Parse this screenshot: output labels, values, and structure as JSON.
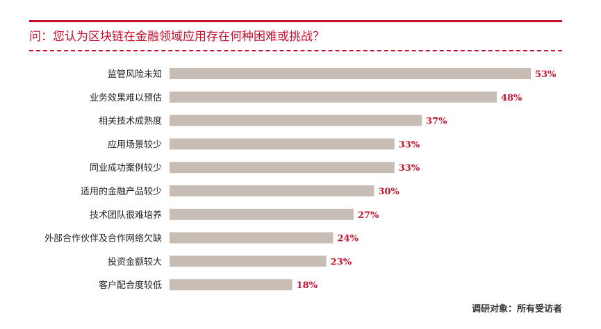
{
  "colors": {
    "accent": "#c8102e",
    "bar": "#c7bdb5",
    "text": "#222222"
  },
  "chart_data": {
    "type": "bar",
    "orientation": "horizontal",
    "title": "问：您认为区块链在金融领域应用存在何种困难或挑战？",
    "categories": [
      "监管风险未知",
      "业务效果难以预估",
      "相关技术成熟度",
      "应用场景较少",
      "同业成功案例较少",
      "适用的金融产品较少",
      "技术团队很难培养",
      "外部合作伙伴及合作网络欠缺",
      "投资金额较大",
      "客户配合度较低"
    ],
    "values": [
      53,
      48,
      37,
      33,
      33,
      30,
      27,
      24,
      23,
      18
    ],
    "value_labels": [
      "53%",
      "48%",
      "37%",
      "33%",
      "33%",
      "30%",
      "27%",
      "24%",
      "23%",
      "18%"
    ],
    "unit": "%",
    "xlim": [
      0,
      53
    ],
    "grid": false,
    "legend": "none",
    "footnote": "调研对象：所有受访者"
  }
}
